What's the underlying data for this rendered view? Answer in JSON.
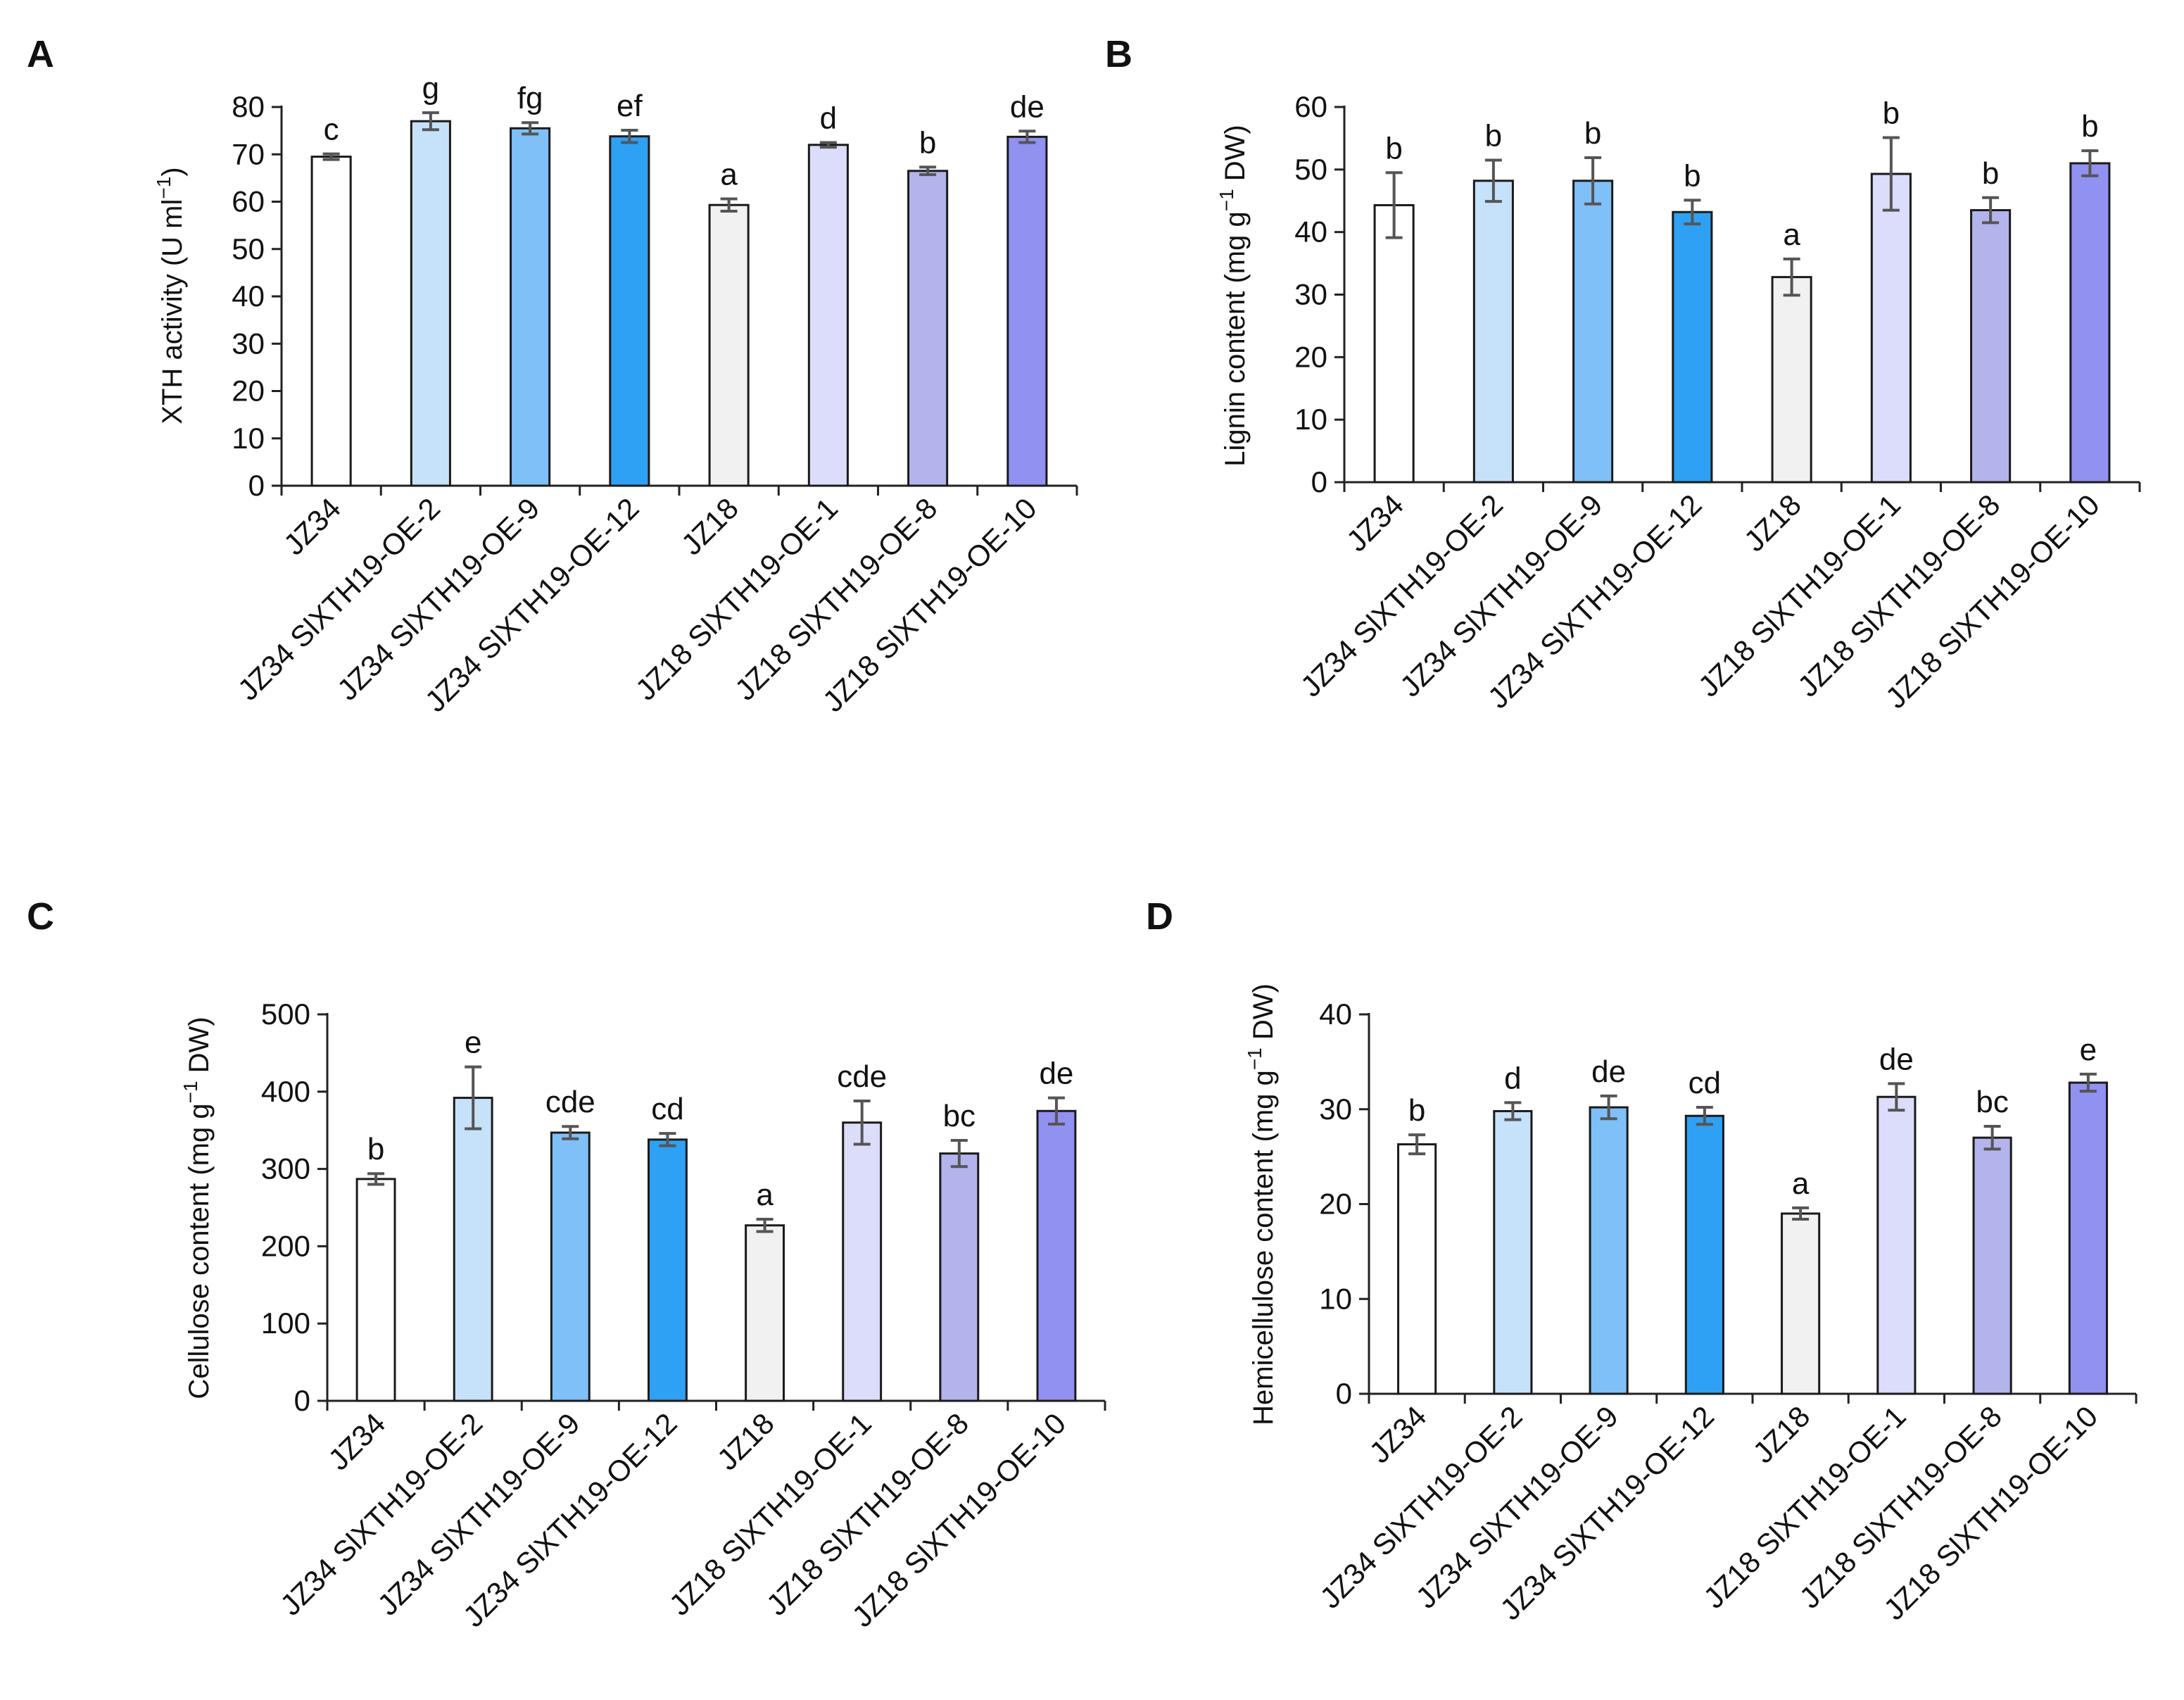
{
  "categories": [
    "JZ34",
    "JZ34 SlXTH19-OE-2",
    "JZ34 SlXTH19-OE-9",
    "JZ34 SlXTH19-OE-12",
    "JZ18",
    "JZ18 SlXTH19-OE-1",
    "JZ18 SlXTH19-OE-8",
    "JZ18 SlXTH19-OE-10"
  ],
  "bar_colors": [
    "#ffffff",
    "#c6e2fb",
    "#7fc0f8",
    "#2ea1f4",
    "#f1f1f1",
    "#dcdcfb",
    "#b4b4ec",
    "#9191f2"
  ],
  "chart_data": [
    {
      "panel": "A",
      "type": "bar",
      "ylabel": "XTH activity (U ml",
      "ylabel_sup": "−1",
      "ylabel_end": ")",
      "ylim": [
        0,
        80
      ],
      "yticks": [
        0,
        10,
        20,
        30,
        40,
        50,
        60,
        70,
        80
      ],
      "values": [
        69.5,
        77,
        75.5,
        73.8,
        59.3,
        72,
        66.5,
        73.7
      ],
      "errors": [
        0.6,
        1.8,
        1.2,
        1.3,
        1.3,
        0.5,
        0.8,
        1.2
      ],
      "letters": [
        "c",
        "g",
        "fg",
        "ef",
        "a",
        "d",
        "b",
        "de"
      ]
    },
    {
      "panel": "B",
      "type": "bar",
      "ylabel": "Lignin content (mg g",
      "ylabel_sup": "−1",
      "ylabel_end": " DW)",
      "ylim": [
        0,
        60
      ],
      "yticks": [
        0,
        10,
        20,
        30,
        40,
        50,
        60
      ],
      "values": [
        44.3,
        48.2,
        48.2,
        43.2,
        32.8,
        49.3,
        43.5,
        51
      ],
      "errors": [
        5.2,
        3.3,
        3.7,
        1.9,
        2.9,
        5.8,
        2,
        2
      ],
      "letters": [
        "b",
        "b",
        "b",
        "b",
        "a",
        "b",
        "b",
        "b"
      ]
    },
    {
      "panel": "C",
      "type": "bar",
      "ylabel": "Cellulose content (mg g",
      "ylabel_sup": "−1",
      "ylabel_end": " DW)",
      "ylim": [
        0,
        500
      ],
      "yticks": [
        0,
        100,
        200,
        300,
        400,
        500
      ],
      "values": [
        287,
        392,
        347,
        338,
        227,
        360,
        320,
        375
      ],
      "errors": [
        7,
        40,
        8,
        8,
        8,
        28,
        17,
        17
      ],
      "letters": [
        "b",
        "e",
        "cde",
        "cd",
        "a",
        "cde",
        "bc",
        "de"
      ]
    },
    {
      "panel": "D",
      "type": "bar",
      "ylabel": "Hemicellulose content (mg g",
      "ylabel_sup": "−1",
      "ylabel_end": " DW)",
      "ylim": [
        0,
        40
      ],
      "yticks": [
        0,
        10,
        20,
        30,
        40
      ],
      "values": [
        26.3,
        29.8,
        30.2,
        29.3,
        19,
        31.3,
        27,
        32.8
      ],
      "errors": [
        1,
        0.9,
        1.2,
        0.9,
        0.6,
        1.4,
        1.2,
        0.9
      ],
      "letters": [
        "b",
        "d",
        "de",
        "cd",
        "a",
        "de",
        "bc",
        "e"
      ]
    }
  ]
}
